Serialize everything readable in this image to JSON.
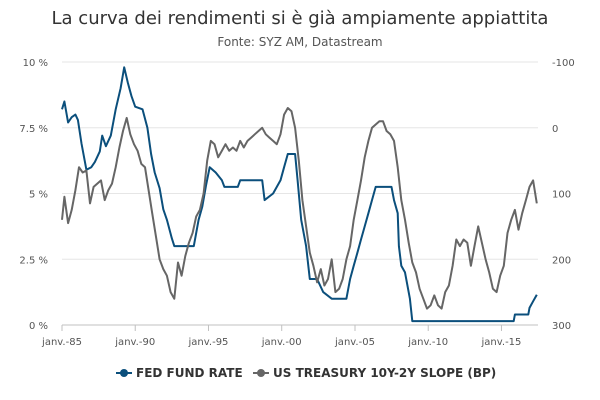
{
  "chart_data": {
    "type": "line",
    "title": "La curva dei rendimenti si è già ampiamente appiattita",
    "subtitle": "Fonte: SYZ AM, Datastream",
    "grid": true,
    "legend_position": "bottom",
    "x_axis": {
      "type": "date",
      "range": [
        "1985-01-01",
        "2017-06-30"
      ],
      "tick_labels": [
        "janv.-85",
        "janv.-90",
        "janv.-95",
        "janv.-00",
        "janv.-05",
        "janv.-10",
        "janv.-15"
      ],
      "tick_dates": [
        "1985-01-01",
        "1990-01-01",
        "1995-01-01",
        "2000-01-01",
        "2005-01-01",
        "2010-01-01",
        "2015-01-01"
      ]
    },
    "y_axis_left": {
      "range": [
        0,
        10
      ],
      "tick_labels": [
        "0 %",
        "2.5 %",
        "5 %",
        "7.5 %",
        "10 %"
      ],
      "tick_values": [
        0,
        2.5,
        5,
        7.5,
        10
      ]
    },
    "y_axis_right": {
      "range": [
        -100,
        300
      ],
      "reversed": true,
      "tick_labels": [
        "-100",
        "0",
        "100",
        "200",
        "300"
      ],
      "tick_values": [
        -100,
        0,
        100,
        200,
        300
      ]
    },
    "series": [
      {
        "name": "FED FUND RATE",
        "color": "#0b4f7c",
        "axis": "left",
        "points": [
          [
            "1985-01-01",
            8.2
          ],
          [
            "1985-03-01",
            8.5
          ],
          [
            "1985-06-01",
            7.7
          ],
          [
            "1985-09-01",
            7.9
          ],
          [
            "1985-12-01",
            8.0
          ],
          [
            "1986-02-01",
            7.8
          ],
          [
            "1986-05-01",
            6.9
          ],
          [
            "1986-09-01",
            5.9
          ],
          [
            "1987-01-01",
            6.0
          ],
          [
            "1987-04-01",
            6.2
          ],
          [
            "1987-08-01",
            6.6
          ],
          [
            "1987-10-01",
            7.2
          ],
          [
            "1988-01-01",
            6.8
          ],
          [
            "1988-05-01",
            7.2
          ],
          [
            "1988-09-01",
            8.2
          ],
          [
            "1989-01-01",
            9.0
          ],
          [
            "1989-04-01",
            9.8
          ],
          [
            "1989-07-01",
            9.2
          ],
          [
            "1989-10-01",
            8.7
          ],
          [
            "1990-01-01",
            8.3
          ],
          [
            "1990-07-01",
            8.2
          ],
          [
            "1990-11-01",
            7.5
          ],
          [
            "1991-02-01",
            6.5
          ],
          [
            "1991-05-01",
            5.8
          ],
          [
            "1991-09-01",
            5.2
          ],
          [
            "1991-12-01",
            4.4
          ],
          [
            "1992-03-01",
            4.0
          ],
          [
            "1992-07-01",
            3.3
          ],
          [
            "1992-09-01",
            3.0
          ],
          [
            "1993-06-01",
            3.0
          ],
          [
            "1994-01-01",
            3.0
          ],
          [
            "1994-03-01",
            3.5
          ],
          [
            "1994-05-01",
            4.0
          ],
          [
            "1994-08-01",
            4.5
          ],
          [
            "1994-11-01",
            5.3
          ],
          [
            "1995-02-01",
            6.0
          ],
          [
            "1995-07-01",
            5.8
          ],
          [
            "1995-12-01",
            5.5
          ],
          [
            "1996-02-01",
            5.25
          ],
          [
            "1996-06-01",
            5.25
          ],
          [
            "1997-01-01",
            5.25
          ],
          [
            "1997-03-01",
            5.5
          ],
          [
            "1998-01-01",
            5.5
          ],
          [
            "1998-09-01",
            5.5
          ],
          [
            "1998-11-01",
            4.75
          ],
          [
            "1999-06-01",
            5.0
          ],
          [
            "1999-09-01",
            5.25
          ],
          [
            "1999-12-01",
            5.5
          ],
          [
            "2000-03-01",
            6.0
          ],
          [
            "2000-06-01",
            6.5
          ],
          [
            "2000-12-01",
            6.5
          ],
          [
            "2001-02-01",
            5.5
          ],
          [
            "2001-05-01",
            4.0
          ],
          [
            "2001-09-01",
            3.0
          ],
          [
            "2001-12-01",
            1.75
          ],
          [
            "2002-06-01",
            1.75
          ],
          [
            "2002-11-01",
            1.25
          ],
          [
            "2003-06-01",
            1.0
          ],
          [
            "2004-06-01",
            1.0
          ],
          [
            "2004-09-01",
            1.75
          ],
          [
            "2004-12-01",
            2.25
          ],
          [
            "2005-03-01",
            2.75
          ],
          [
            "2005-06-01",
            3.25
          ],
          [
            "2005-09-01",
            3.75
          ],
          [
            "2005-12-01",
            4.25
          ],
          [
            "2006-03-01",
            4.75
          ],
          [
            "2006-06-01",
            5.25
          ],
          [
            "2007-07-01",
            5.25
          ],
          [
            "2007-09-01",
            4.75
          ],
          [
            "2007-12-01",
            4.25
          ],
          [
            "2008-01-01",
            3.0
          ],
          [
            "2008-03-01",
            2.25
          ],
          [
            "2008-06-01",
            2.0
          ],
          [
            "2008-10-01",
            1.0
          ],
          [
            "2008-12-01",
            0.15
          ],
          [
            "2010-01-01",
            0.15
          ],
          [
            "2012-01-01",
            0.15
          ],
          [
            "2014-01-01",
            0.15
          ],
          [
            "2015-11-01",
            0.15
          ],
          [
            "2015-12-01",
            0.4
          ],
          [
            "2016-11-01",
            0.4
          ],
          [
            "2016-12-01",
            0.65
          ],
          [
            "2017-03-01",
            0.9
          ],
          [
            "2017-06-01",
            1.15
          ]
        ]
      },
      {
        "name": "US TREASURY 10Y-2Y SLOPE (BP)",
        "color": "#666666",
        "axis": "right",
        "points": [
          [
            "1985-01-01",
            140
          ],
          [
            "1985-03-01",
            105
          ],
          [
            "1985-06-01",
            145
          ],
          [
            "1985-09-01",
            125
          ],
          [
            "1985-12-01",
            95
          ],
          [
            "1986-03-01",
            60
          ],
          [
            "1986-06-01",
            68
          ],
          [
            "1986-09-01",
            65
          ],
          [
            "1986-12-01",
            115
          ],
          [
            "1987-03-01",
            90
          ],
          [
            "1987-06-01",
            85
          ],
          [
            "1987-09-01",
            80
          ],
          [
            "1987-12-01",
            110
          ],
          [
            "1988-03-01",
            95
          ],
          [
            "1988-06-01",
            85
          ],
          [
            "1988-09-01",
            60
          ],
          [
            "1988-12-01",
            30
          ],
          [
            "1989-03-01",
            5
          ],
          [
            "1989-06-01",
            -15
          ],
          [
            "1989-09-01",
            10
          ],
          [
            "1989-12-01",
            25
          ],
          [
            "1990-03-01",
            35
          ],
          [
            "1990-06-01",
            55
          ],
          [
            "1990-09-01",
            60
          ],
          [
            "1990-12-01",
            95
          ],
          [
            "1991-03-01",
            130
          ],
          [
            "1991-06-01",
            165
          ],
          [
            "1991-09-01",
            200
          ],
          [
            "1991-12-01",
            215
          ],
          [
            "1992-03-01",
            225
          ],
          [
            "1992-06-01",
            250
          ],
          [
            "1992-09-01",
            260
          ],
          [
            "1992-12-01",
            205
          ],
          [
            "1993-03-01",
            225
          ],
          [
            "1993-06-01",
            195
          ],
          [
            "1993-09-01",
            175
          ],
          [
            "1993-12-01",
            160
          ],
          [
            "1994-03-01",
            135
          ],
          [
            "1994-06-01",
            125
          ],
          [
            "1994-09-01",
            100
          ],
          [
            "1994-12-01",
            50
          ],
          [
            "1995-03-01",
            20
          ],
          [
            "1995-06-01",
            25
          ],
          [
            "1995-09-01",
            45
          ],
          [
            "1995-12-01",
            35
          ],
          [
            "1996-03-01",
            25
          ],
          [
            "1996-06-01",
            35
          ],
          [
            "1996-09-01",
            30
          ],
          [
            "1996-12-01",
            35
          ],
          [
            "1997-03-01",
            20
          ],
          [
            "1997-06-01",
            30
          ],
          [
            "1997-09-01",
            20
          ],
          [
            "1997-12-01",
            15
          ],
          [
            "1998-03-01",
            10
          ],
          [
            "1998-06-01",
            5
          ],
          [
            "1998-09-01",
            0
          ],
          [
            "1998-12-01",
            10
          ],
          [
            "1999-03-01",
            15
          ],
          [
            "1999-06-01",
            20
          ],
          [
            "1999-09-01",
            25
          ],
          [
            "1999-12-01",
            10
          ],
          [
            "2000-03-01",
            -20
          ],
          [
            "2000-06-01",
            -30
          ],
          [
            "2000-09-01",
            -25
          ],
          [
            "2000-12-01",
            0
          ],
          [
            "2001-03-01",
            50
          ],
          [
            "2001-06-01",
            110
          ],
          [
            "2001-09-01",
            150
          ],
          [
            "2001-12-01",
            190
          ],
          [
            "2002-03-01",
            210
          ],
          [
            "2002-06-01",
            235
          ],
          [
            "2002-09-01",
            215
          ],
          [
            "2002-12-01",
            240
          ],
          [
            "2003-03-01",
            230
          ],
          [
            "2003-06-01",
            200
          ],
          [
            "2003-09-01",
            250
          ],
          [
            "2003-12-01",
            245
          ],
          [
            "2004-03-01",
            230
          ],
          [
            "2004-06-01",
            200
          ],
          [
            "2004-09-01",
            180
          ],
          [
            "2004-12-01",
            140
          ],
          [
            "2005-03-01",
            110
          ],
          [
            "2005-06-01",
            80
          ],
          [
            "2005-09-01",
            45
          ],
          [
            "2005-12-01",
            20
          ],
          [
            "2006-03-01",
            0
          ],
          [
            "2006-06-01",
            -5
          ],
          [
            "2006-09-01",
            -10
          ],
          [
            "2006-12-01",
            -10
          ],
          [
            "2007-03-01",
            5
          ],
          [
            "2007-06-01",
            10
          ],
          [
            "2007-09-01",
            20
          ],
          [
            "2007-12-01",
            60
          ],
          [
            "2008-03-01",
            110
          ],
          [
            "2008-06-01",
            140
          ],
          [
            "2008-09-01",
            175
          ],
          [
            "2008-12-01",
            205
          ],
          [
            "2009-03-01",
            220
          ],
          [
            "2009-06-01",
            245
          ],
          [
            "2009-09-01",
            260
          ],
          [
            "2009-12-01",
            275
          ],
          [
            "2010-03-01",
            270
          ],
          [
            "2010-06-01",
            255
          ],
          [
            "2010-09-01",
            270
          ],
          [
            "2010-12-01",
            275
          ],
          [
            "2011-03-01",
            250
          ],
          [
            "2011-06-01",
            240
          ],
          [
            "2011-09-01",
            210
          ],
          [
            "2011-12-01",
            170
          ],
          [
            "2012-03-01",
            180
          ],
          [
            "2012-06-01",
            170
          ],
          [
            "2012-09-01",
            175
          ],
          [
            "2012-12-01",
            210
          ],
          [
            "2013-03-01",
            180
          ],
          [
            "2013-06-01",
            150
          ],
          [
            "2013-09-01",
            175
          ],
          [
            "2013-12-01",
            200
          ],
          [
            "2014-03-01",
            220
          ],
          [
            "2014-06-01",
            245
          ],
          [
            "2014-09-01",
            250
          ],
          [
            "2014-12-01",
            225
          ],
          [
            "2015-03-01",
            210
          ],
          [
            "2015-06-01",
            160
          ],
          [
            "2015-09-01",
            140
          ],
          [
            "2015-12-01",
            125
          ],
          [
            "2016-03-01",
            155
          ],
          [
            "2016-06-01",
            130
          ],
          [
            "2016-09-01",
            110
          ],
          [
            "2016-12-01",
            90
          ],
          [
            "2017-03-01",
            80
          ],
          [
            "2017-06-01",
            115
          ]
        ]
      }
    ]
  }
}
